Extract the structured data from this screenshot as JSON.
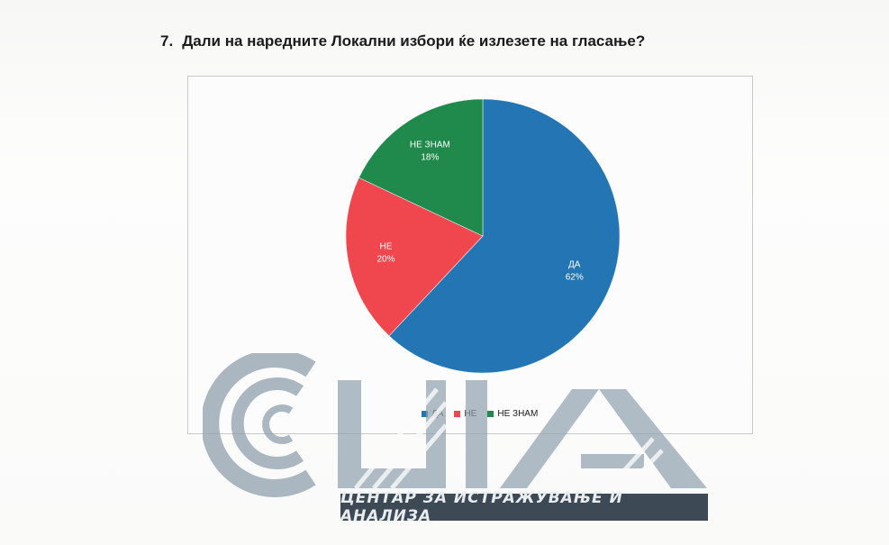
{
  "question": {
    "number": "7.",
    "text": "Дали на наредните Локални избори ќе излезете на гласање?"
  },
  "chart_data": {
    "type": "pie",
    "categories": [
      "ДА",
      "НЕ",
      "НЕ ЗНАМ"
    ],
    "values": [
      62,
      20,
      18
    ],
    "labels": [
      "62%",
      "20%",
      "18%"
    ],
    "colors": [
      "#2375b3",
      "#f0474e",
      "#1f8a4c"
    ],
    "legend_position": "bottom"
  },
  "logo": {
    "letters": "СЦИА",
    "tagline": "ЦЕНТАР ЗА ИСТРАЖУВАЊЕ И АНАЛИЗА"
  }
}
